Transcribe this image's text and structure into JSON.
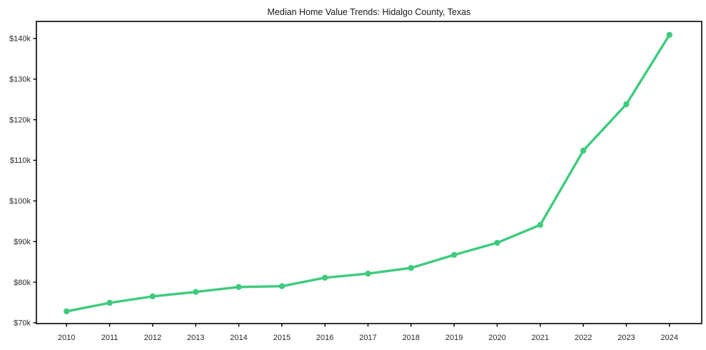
{
  "chart_data": {
    "type": "line",
    "title": "Median Home Value Trends: Hidalgo County, Texas",
    "xlabel": "",
    "ylabel": "",
    "x": [
      2010,
      2011,
      2012,
      2013,
      2014,
      2015,
      2016,
      2017,
      2018,
      2019,
      2020,
      2021,
      2022,
      2023,
      2024
    ],
    "values": [
      72800,
      74900,
      76500,
      77600,
      78800,
      79000,
      81100,
      82100,
      83500,
      86700,
      89700,
      94100,
      112400,
      123800,
      140900
    ],
    "x_tick_labels": [
      "2010",
      "2011",
      "2012",
      "2013",
      "2014",
      "2015",
      "2016",
      "2017",
      "2018",
      "2019",
      "2020",
      "2021",
      "2022",
      "2023",
      "2024"
    ],
    "y_ticks": [
      70000,
      80000,
      90000,
      100000,
      110000,
      120000,
      130000,
      140000
    ],
    "y_tick_labels": [
      "$70k",
      "$80k",
      "$90k",
      "$100k",
      "$110k",
      "$120k",
      "$130k",
      "$140k"
    ],
    "xlim": [
      2009.3,
      2024.75
    ],
    "ylim": [
      69800,
      144200
    ],
    "grid": false,
    "legend": "none",
    "marker": "circle",
    "colors": {
      "line": "#3ecb7d",
      "marker": "#3ecb7d",
      "axis": "#000000",
      "tick_label": "#2a2a2a",
      "title": "#1a1a1a",
      "background": "#ffffff"
    }
  }
}
